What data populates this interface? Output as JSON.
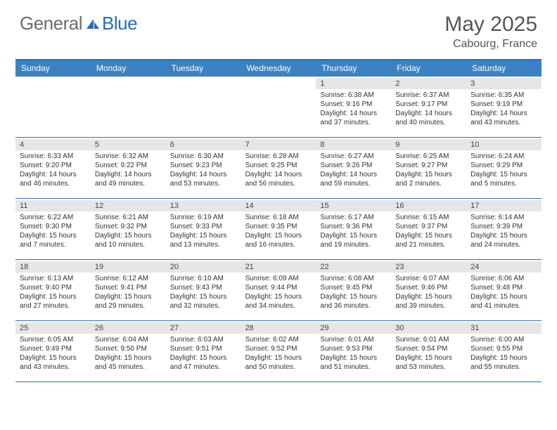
{
  "brand": {
    "general": "General",
    "blue": "Blue"
  },
  "title": "May 2025",
  "location": "Cabourg, France",
  "day_headers": [
    "Sunday",
    "Monday",
    "Tuesday",
    "Wednesday",
    "Thursday",
    "Friday",
    "Saturday"
  ],
  "colors": {
    "header_bg": "#3b82c4",
    "header_border": "#2a6db3",
    "daynum_bg": "#e6e6e6",
    "text": "#333333",
    "brand_gray": "#6b6b6b",
    "brand_blue": "#2a6db3"
  },
  "weeks": [
    [
      {
        "n": "",
        "empty": true
      },
      {
        "n": "",
        "empty": true
      },
      {
        "n": "",
        "empty": true
      },
      {
        "n": "",
        "empty": true
      },
      {
        "n": "1",
        "sunrise": "Sunrise: 6:38 AM",
        "sunset": "Sunset: 9:16 PM",
        "daylight": "Daylight: 14 hours and 37 minutes."
      },
      {
        "n": "2",
        "sunrise": "Sunrise: 6:37 AM",
        "sunset": "Sunset: 9:17 PM",
        "daylight": "Daylight: 14 hours and 40 minutes."
      },
      {
        "n": "3",
        "sunrise": "Sunrise: 6:35 AM",
        "sunset": "Sunset: 9:19 PM",
        "daylight": "Daylight: 14 hours and 43 minutes."
      }
    ],
    [
      {
        "n": "4",
        "sunrise": "Sunrise: 6:33 AM",
        "sunset": "Sunset: 9:20 PM",
        "daylight": "Daylight: 14 hours and 46 minutes."
      },
      {
        "n": "5",
        "sunrise": "Sunrise: 6:32 AM",
        "sunset": "Sunset: 9:22 PM",
        "daylight": "Daylight: 14 hours and 49 minutes."
      },
      {
        "n": "6",
        "sunrise": "Sunrise: 6:30 AM",
        "sunset": "Sunset: 9:23 PM",
        "daylight": "Daylight: 14 hours and 53 minutes."
      },
      {
        "n": "7",
        "sunrise": "Sunrise: 6:28 AM",
        "sunset": "Sunset: 9:25 PM",
        "daylight": "Daylight: 14 hours and 56 minutes."
      },
      {
        "n": "8",
        "sunrise": "Sunrise: 6:27 AM",
        "sunset": "Sunset: 9:26 PM",
        "daylight": "Daylight: 14 hours and 59 minutes."
      },
      {
        "n": "9",
        "sunrise": "Sunrise: 6:25 AM",
        "sunset": "Sunset: 9:27 PM",
        "daylight": "Daylight: 15 hours and 2 minutes."
      },
      {
        "n": "10",
        "sunrise": "Sunrise: 6:24 AM",
        "sunset": "Sunset: 9:29 PM",
        "daylight": "Daylight: 15 hours and 5 minutes."
      }
    ],
    [
      {
        "n": "11",
        "sunrise": "Sunrise: 6:22 AM",
        "sunset": "Sunset: 9:30 PM",
        "daylight": "Daylight: 15 hours and 7 minutes."
      },
      {
        "n": "12",
        "sunrise": "Sunrise: 6:21 AM",
        "sunset": "Sunset: 9:32 PM",
        "daylight": "Daylight: 15 hours and 10 minutes."
      },
      {
        "n": "13",
        "sunrise": "Sunrise: 6:19 AM",
        "sunset": "Sunset: 9:33 PM",
        "daylight": "Daylight: 15 hours and 13 minutes."
      },
      {
        "n": "14",
        "sunrise": "Sunrise: 6:18 AM",
        "sunset": "Sunset: 9:35 PM",
        "daylight": "Daylight: 15 hours and 16 minutes."
      },
      {
        "n": "15",
        "sunrise": "Sunrise: 6:17 AM",
        "sunset": "Sunset: 9:36 PM",
        "daylight": "Daylight: 15 hours and 19 minutes."
      },
      {
        "n": "16",
        "sunrise": "Sunrise: 6:15 AM",
        "sunset": "Sunset: 9:37 PM",
        "daylight": "Daylight: 15 hours and 21 minutes."
      },
      {
        "n": "17",
        "sunrise": "Sunrise: 6:14 AM",
        "sunset": "Sunset: 9:39 PM",
        "daylight": "Daylight: 15 hours and 24 minutes."
      }
    ],
    [
      {
        "n": "18",
        "sunrise": "Sunrise: 6:13 AM",
        "sunset": "Sunset: 9:40 PM",
        "daylight": "Daylight: 15 hours and 27 minutes."
      },
      {
        "n": "19",
        "sunrise": "Sunrise: 6:12 AM",
        "sunset": "Sunset: 9:41 PM",
        "daylight": "Daylight: 15 hours and 29 minutes."
      },
      {
        "n": "20",
        "sunrise": "Sunrise: 6:10 AM",
        "sunset": "Sunset: 9:43 PM",
        "daylight": "Daylight: 15 hours and 32 minutes."
      },
      {
        "n": "21",
        "sunrise": "Sunrise: 6:09 AM",
        "sunset": "Sunset: 9:44 PM",
        "daylight": "Daylight: 15 hours and 34 minutes."
      },
      {
        "n": "22",
        "sunrise": "Sunrise: 6:08 AM",
        "sunset": "Sunset: 9:45 PM",
        "daylight": "Daylight: 15 hours and 36 minutes."
      },
      {
        "n": "23",
        "sunrise": "Sunrise: 6:07 AM",
        "sunset": "Sunset: 9:46 PM",
        "daylight": "Daylight: 15 hours and 39 minutes."
      },
      {
        "n": "24",
        "sunrise": "Sunrise: 6:06 AM",
        "sunset": "Sunset: 9:48 PM",
        "daylight": "Daylight: 15 hours and 41 minutes."
      }
    ],
    [
      {
        "n": "25",
        "sunrise": "Sunrise: 6:05 AM",
        "sunset": "Sunset: 9:49 PM",
        "daylight": "Daylight: 15 hours and 43 minutes."
      },
      {
        "n": "26",
        "sunrise": "Sunrise: 6:04 AM",
        "sunset": "Sunset: 9:50 PM",
        "daylight": "Daylight: 15 hours and 45 minutes."
      },
      {
        "n": "27",
        "sunrise": "Sunrise: 6:03 AM",
        "sunset": "Sunset: 9:51 PM",
        "daylight": "Daylight: 15 hours and 47 minutes."
      },
      {
        "n": "28",
        "sunrise": "Sunrise: 6:02 AM",
        "sunset": "Sunset: 9:52 PM",
        "daylight": "Daylight: 15 hours and 50 minutes."
      },
      {
        "n": "29",
        "sunrise": "Sunrise: 6:01 AM",
        "sunset": "Sunset: 9:53 PM",
        "daylight": "Daylight: 15 hours and 51 minutes."
      },
      {
        "n": "30",
        "sunrise": "Sunrise: 6:01 AM",
        "sunset": "Sunset: 9:54 PM",
        "daylight": "Daylight: 15 hours and 53 minutes."
      },
      {
        "n": "31",
        "sunrise": "Sunrise: 6:00 AM",
        "sunset": "Sunset: 9:55 PM",
        "daylight": "Daylight: 15 hours and 55 minutes."
      }
    ]
  ]
}
